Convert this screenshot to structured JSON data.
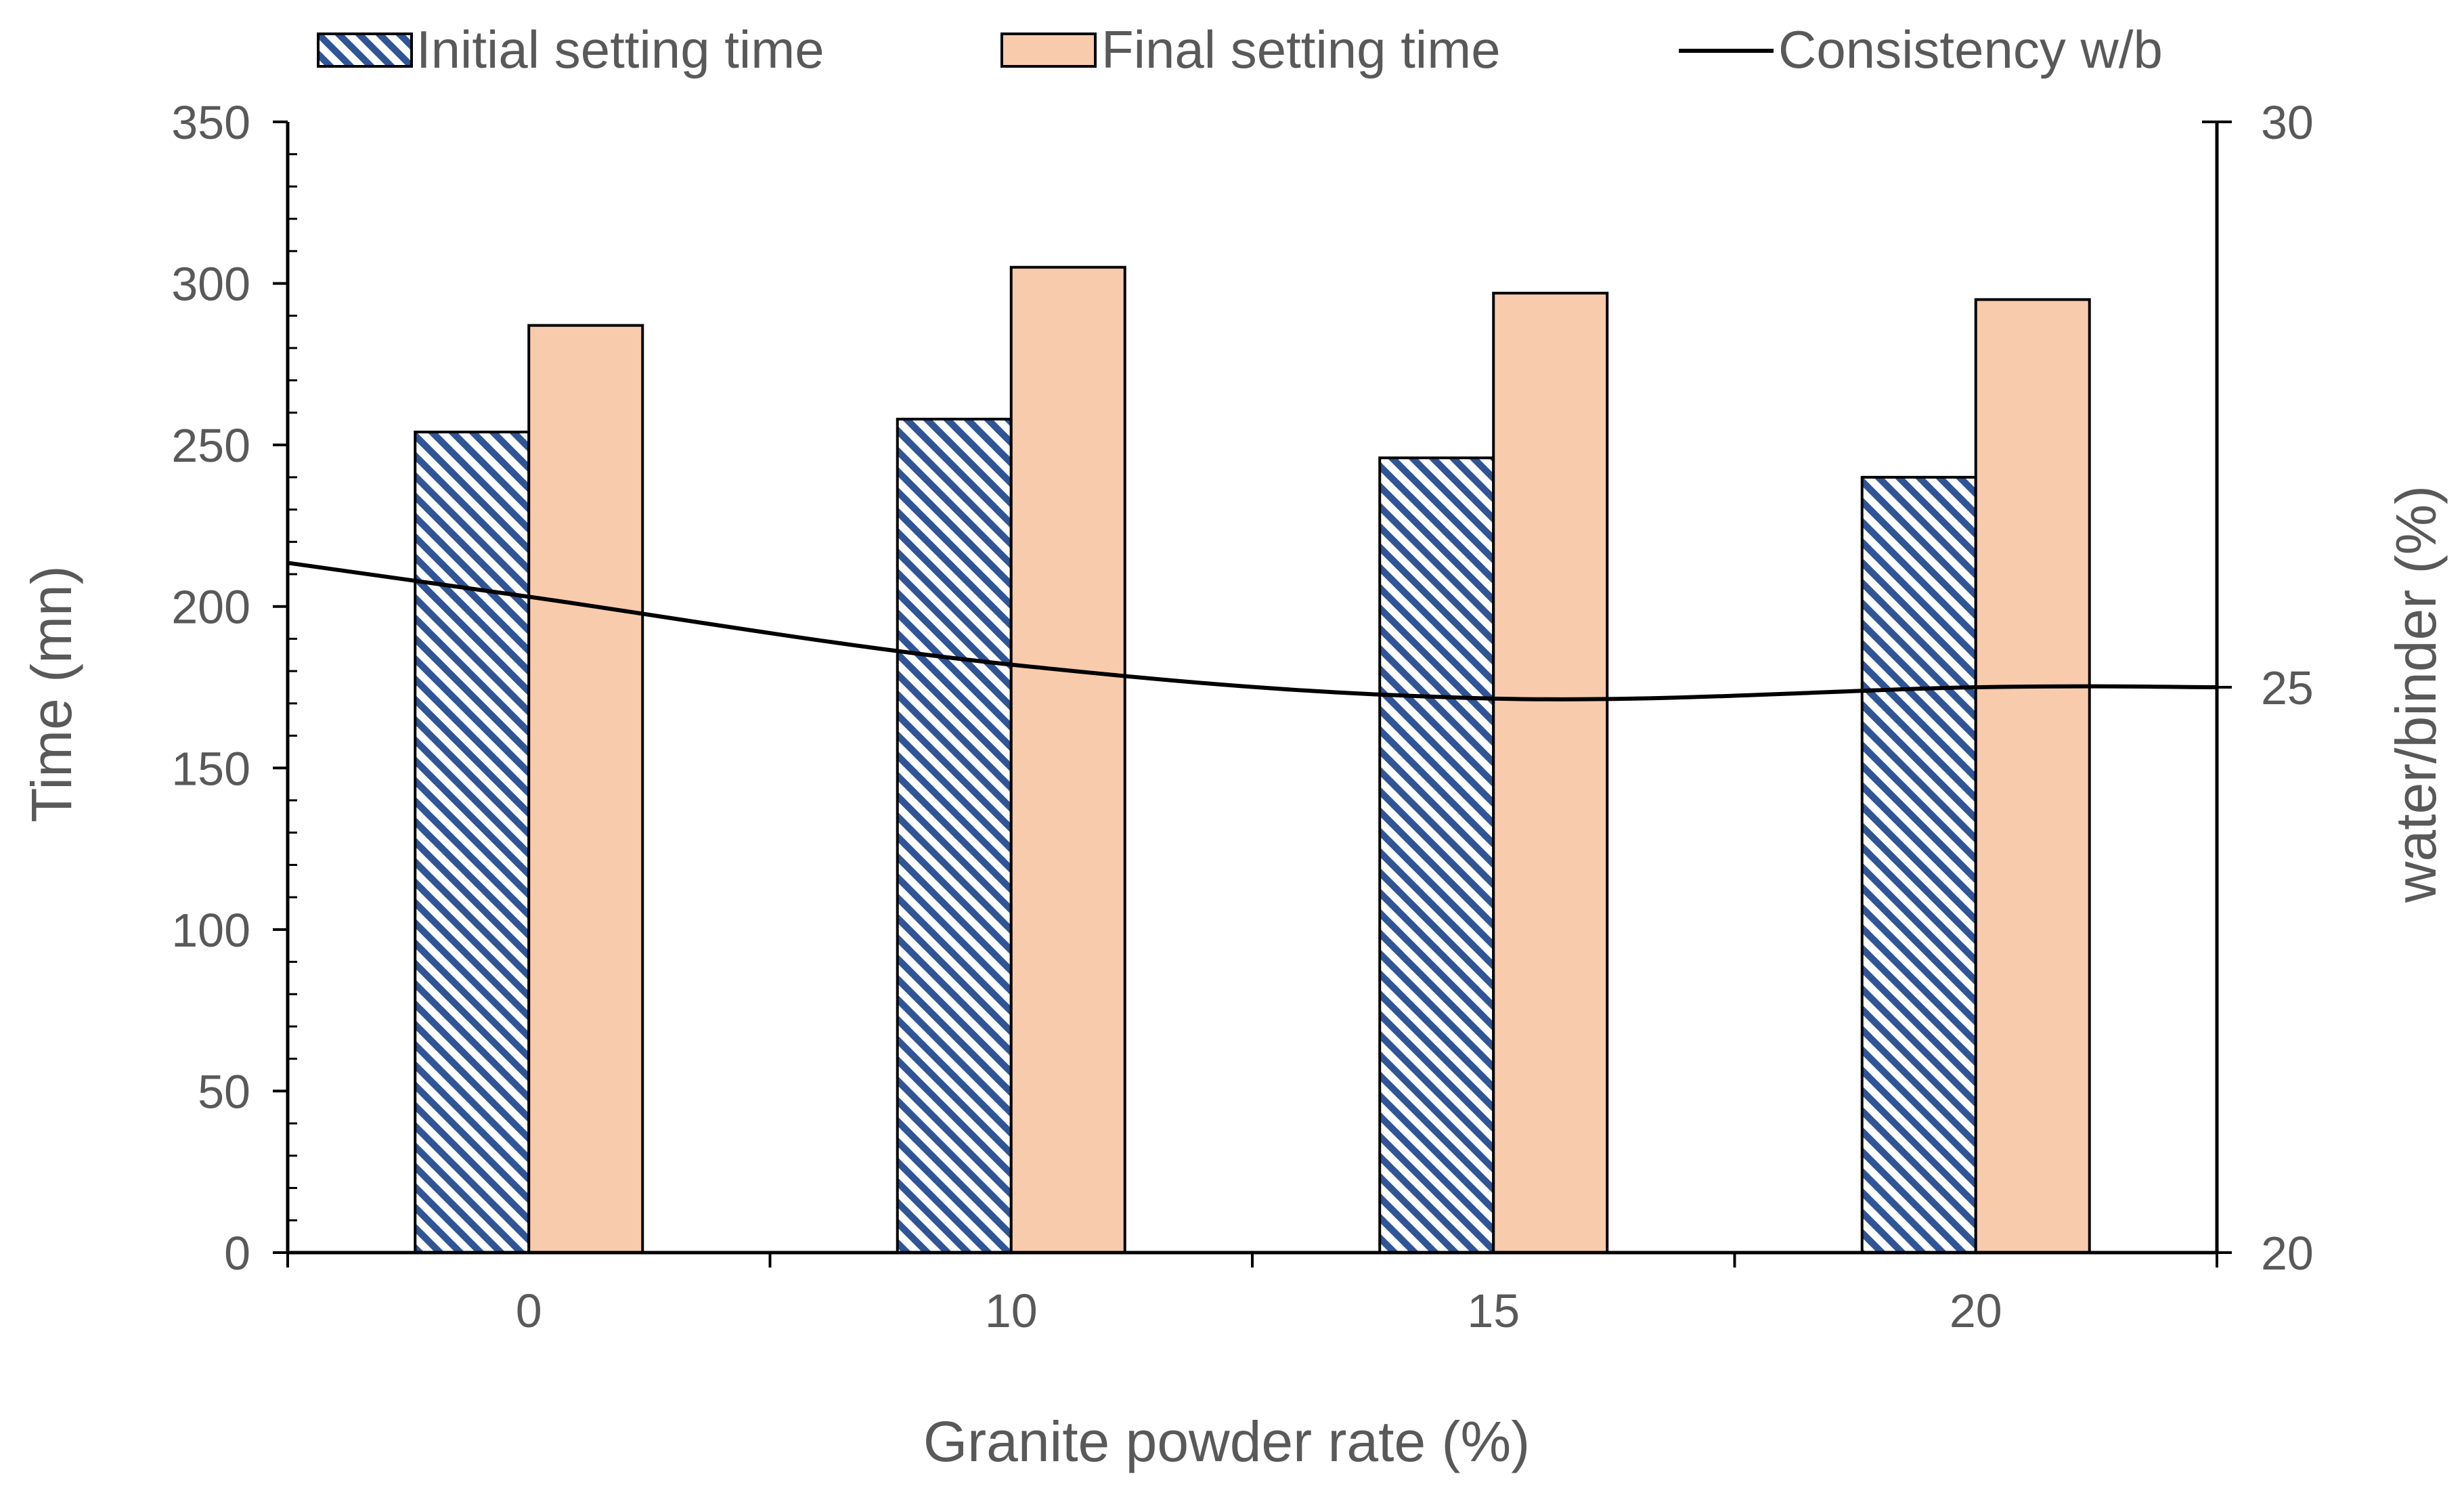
{
  "chart_data": {
    "type": "bar",
    "title": "",
    "categories": [
      "0",
      "10",
      "15",
      "20"
    ],
    "xlabel": "Granite powder rate (%)",
    "ylabel": "Time (mn)",
    "y2label": "water/binder (%)",
    "ylim": [
      0,
      350
    ],
    "yticks": [
      "0",
      "50",
      "100",
      "150",
      "200",
      "250",
      "300",
      "350"
    ],
    "y2lim": [
      20,
      30
    ],
    "y2ticks": [
      "20",
      "25",
      "30"
    ],
    "legend_position": "top",
    "grid": false,
    "series": [
      {
        "name": "Initial setting time",
        "kind": "bar",
        "axis": "left",
        "pattern": "diagonal-stripes",
        "color": "#2F5597",
        "values": [
          254,
          258,
          246,
          240
        ]
      },
      {
        "name": "Final setting time",
        "kind": "bar",
        "axis": "left",
        "color": "#F8CBAD",
        "values": [
          287,
          305,
          297,
          295
        ]
      },
      {
        "name": "Consistency w/b",
        "kind": "line",
        "axis": "right",
        "color": "#000000",
        "values": [
          25.8,
          25.2,
          24.9,
          25.0
        ]
      }
    ]
  }
}
